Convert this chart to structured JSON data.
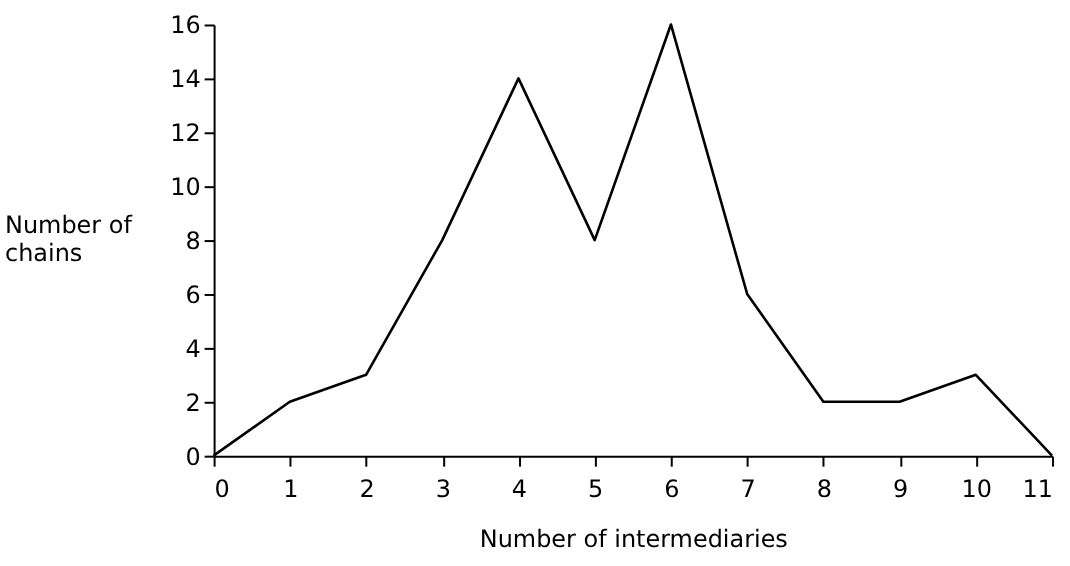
{
  "chart_data": {
    "type": "line",
    "xlabel": "Number of intermediaries",
    "ylabel": "Number of\nchains",
    "x": [
      0,
      1,
      2,
      3,
      4,
      5,
      6,
      7,
      8,
      9,
      10,
      11
    ],
    "series": [
      {
        "color": "#000000",
        "values": [
          0,
          2,
          3,
          8,
          14,
          8,
          16,
          6,
          2,
          2,
          3,
          0
        ]
      }
    ],
    "xlim": [
      0,
      11
    ],
    "xticks": [
      0,
      1,
      2,
      3,
      4,
      5,
      6,
      7,
      8,
      9,
      10,
      11
    ],
    "ylim": [
      0,
      16
    ],
    "yticks": [
      0,
      2,
      4,
      6,
      8,
      10,
      12,
      14,
      16
    ],
    "grid": false,
    "legend": false,
    "marker": "none",
    "line_style": "solid"
  }
}
